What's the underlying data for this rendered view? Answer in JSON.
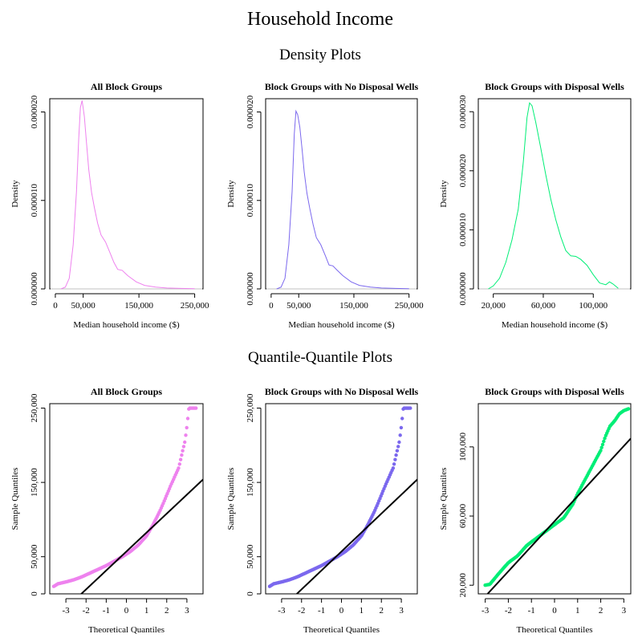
{
  "titles": {
    "main": "Household Income",
    "density_section": "Density Plots",
    "qq_section": "Quantile-Quantile Plots"
  },
  "colors": {
    "all": "#ee82ee",
    "no_wells": "#7b68ee",
    "wells": "#00ee76",
    "reference_line": "#000000",
    "zero_line": "#c0c0c0"
  },
  "chart_data": [
    {
      "type": "line",
      "title": "All Block Groups",
      "xlabel": "Median household income ($)",
      "ylabel": "Density",
      "xlim": [
        -10000,
        265000
      ],
      "ylim": [
        0,
        2.15e-05
      ],
      "x_ticks": [
        0,
        50000,
        150000,
        250000
      ],
      "x_tick_labels": [
        "0",
        "50,000",
        "150,000",
        "250,000"
      ],
      "y_ticks": [
        0,
        1e-05,
        2e-05
      ],
      "y_tick_labels": [
        "0.000000",
        "0.000010",
        "0.000020"
      ],
      "color": "#ee82ee",
      "series": [
        {
          "x": [
            10000,
            18000,
            25000,
            32000,
            38000,
            42000,
            45000,
            48000,
            52000,
            56000,
            60000,
            65000,
            70000,
            76000,
            82000,
            90000,
            98000,
            105000,
            112000,
            120000,
            130000,
            145000,
            160000,
            180000,
            200000,
            225000,
            250000
          ],
          "y": [
            0,
            2e-07,
            1.2e-06,
            5e-06,
            1.1e-05,
            1.7e-05,
            2.05e-05,
            2.13e-05,
            1.95e-05,
            1.65e-05,
            1.35e-05,
            1.09e-05,
            9.2e-06,
            7.4e-06,
            6.1e-06,
            5.3e-06,
            4.1e-06,
            3e-06,
            2.2e-06,
            2.1e-06,
            1.5e-06,
            8e-07,
            4e-07,
            2e-07,
            1e-07,
            5e-08,
            2e-08
          ]
        }
      ]
    },
    {
      "type": "line",
      "title": "Block Groups with No Disposal Wells",
      "xlabel": "Median household income ($)",
      "ylabel": "Density",
      "xlim": [
        -10000,
        265000
      ],
      "ylim": [
        0,
        2.15e-05
      ],
      "x_ticks": [
        0,
        50000,
        150000,
        250000
      ],
      "x_tick_labels": [
        "0",
        "50,000",
        "150,000",
        "250,000"
      ],
      "y_ticks": [
        0,
        1e-05,
        2e-05
      ],
      "y_tick_labels": [
        "0.000000",
        "0.000010",
        "0.000020"
      ],
      "color": "#7b68ee",
      "series": [
        {
          "x": [
            10000,
            18000,
            25000,
            32000,
            38000,
            42000,
            45000,
            48000,
            52000,
            56000,
            60000,
            65000,
            70000,
            76000,
            82000,
            90000,
            98000,
            105000,
            112000,
            120000,
            130000,
            145000,
            160000,
            180000,
            200000,
            225000,
            250000
          ],
          "y": [
            0,
            2e-07,
            1.2e-06,
            5e-06,
            1.1e-05,
            1.75e-05,
            2.01e-05,
            1.97e-05,
            1.83e-05,
            1.58e-05,
            1.32e-05,
            1.08e-05,
            9.1e-06,
            7.3e-06,
            5.8e-06,
            5e-06,
            3.8e-06,
            2.7e-06,
            2.6e-06,
            2.1e-06,
            1.5e-06,
            8e-07,
            4e-07,
            2e-07,
            1e-07,
            5e-08,
            2e-08
          ]
        }
      ]
    },
    {
      "type": "line",
      "title": "Block Groups with Disposal Wells",
      "xlabel": "Median household income ($)",
      "ylabel": "Density",
      "xlim": [
        8000,
        130000
      ],
      "ylim": [
        0,
        3.22e-05
      ],
      "x_ticks": [
        20000,
        60000,
        100000
      ],
      "x_tick_labels": [
        "20,000",
        "60,000",
        "100,000"
      ],
      "y_ticks": [
        0,
        1e-05,
        2e-05,
        3e-05
      ],
      "y_tick_labels": [
        "0.000000",
        "0.000010",
        "0.000020",
        "0.000030"
      ],
      "color": "#00ee76",
      "series": [
        {
          "x": [
            16000,
            20000,
            25000,
            30000,
            35000,
            40000,
            44000,
            47000,
            49000,
            51000,
            54000,
            58000,
            62000,
            66000,
            70000,
            74000,
            78000,
            82000,
            86000,
            90000,
            95000,
            100000,
            105000,
            110000,
            113000,
            116000,
            120000
          ],
          "y": [
            0,
            5e-07,
            1.8e-06,
            4.5e-06,
            8.3e-06,
            1.35e-05,
            2.15e-05,
            2.9e-05,
            3.15e-05,
            3.1e-05,
            2.82e-05,
            2.38e-05,
            1.93e-05,
            1.52e-05,
            1.17e-05,
            8.8e-06,
            6.5e-06,
            5.6e-06,
            5.5e-06,
            5e-06,
            4e-06,
            2.4e-06,
            1e-06,
            7e-07,
            1.2e-06,
            8e-07,
            1e-07
          ]
        }
      ]
    },
    {
      "type": "scatter",
      "title": "All Block Groups",
      "xlabel": "Theoretical Quantiles",
      "ylabel": "Sample Quantiles",
      "xlim": [
        -3.8,
        3.8
      ],
      "ylim": [
        0,
        256000
      ],
      "x_ticks": [
        -3,
        -2,
        -1,
        0,
        1,
        2,
        3
      ],
      "x_tick_labels": [
        "-3",
        "-2",
        "-1",
        "0",
        "1",
        "2",
        "3"
      ],
      "y_ticks": [
        0,
        50000,
        150000,
        250000
      ],
      "y_tick_labels": [
        "0",
        "50,000",
        "150,000",
        "250,000"
      ],
      "color": "#ee82ee",
      "reference_line": {
        "intercept": 57000,
        "slope": 25500
      },
      "quantile_curve": {
        "x": [
          -3.6,
          -3.4,
          -3.0,
          -2.6,
          -2.2,
          -1.8,
          -1.4,
          -1.0,
          -0.6,
          -0.2,
          0.2,
          0.6,
          1.0,
          1.3,
          1.6,
          1.8,
          2.0,
          2.2,
          2.4,
          2.6,
          2.75,
          2.9,
          3.0,
          3.1,
          3.25,
          3.45
        ],
        "y": [
          10000,
          13500,
          16000,
          19000,
          23000,
          28000,
          33000,
          38000,
          44000,
          50000,
          57000,
          66000,
          78000,
          92000,
          108000,
          120000,
          133000,
          146000,
          158000,
          170000,
          188000,
          205000,
          225000,
          250000,
          250000,
          250000
        ]
      }
    },
    {
      "type": "scatter",
      "title": "Block Groups with No Disposal Wells",
      "xlabel": "Theoretical Quantiles",
      "ylabel": "Sample Quantiles",
      "xlim": [
        -3.8,
        3.8
      ],
      "ylim": [
        0,
        256000
      ],
      "x_ticks": [
        -3,
        -2,
        -1,
        0,
        1,
        2,
        3
      ],
      "x_tick_labels": [
        "-3",
        "-2",
        "-1",
        "0",
        "1",
        "2",
        "3"
      ],
      "y_ticks": [
        0,
        50000,
        150000,
        250000
      ],
      "y_tick_labels": [
        "0",
        "50,000",
        "150,000",
        "250,000"
      ],
      "color": "#7b68ee",
      "reference_line": {
        "intercept": 57000,
        "slope": 25500
      },
      "quantile_curve": {
        "x": [
          -3.6,
          -3.4,
          -3.0,
          -2.6,
          -2.2,
          -1.8,
          -1.4,
          -1.0,
          -0.6,
          -0.2,
          0.2,
          0.6,
          1.0,
          1.3,
          1.6,
          1.8,
          2.0,
          2.2,
          2.4,
          2.6,
          2.75,
          2.9,
          3.0,
          3.1,
          3.25,
          3.45
        ],
        "y": [
          10000,
          13500,
          16000,
          19000,
          23000,
          28000,
          33000,
          38000,
          44000,
          50000,
          57000,
          66000,
          78000,
          92000,
          108000,
          120000,
          133000,
          146000,
          158000,
          170000,
          188000,
          205000,
          225000,
          250000,
          250000,
          250000
        ]
      }
    },
    {
      "type": "scatter",
      "title": "Block Groups with Disposal Wells",
      "xlabel": "Theoretical Quantiles",
      "ylabel": "Sample Quantiles",
      "xlim": [
        -3.3,
        3.3
      ],
      "ylim": [
        15000,
        125000
      ],
      "x_ticks": [
        -3,
        -2,
        -1,
        0,
        1,
        2,
        3
      ],
      "x_tick_labels": [
        "-3",
        "-2",
        "-1",
        "0",
        "1",
        "2",
        "3"
      ],
      "y_ticks": [
        20000,
        60000,
        100000
      ],
      "y_tick_labels": [
        "20,000",
        "60,000",
        "100,000"
      ],
      "color": "#00ee76",
      "reference_line": {
        "intercept": 57000,
        "slope": 14500
      },
      "quantile_curve": {
        "x": [
          -3.0,
          -2.8,
          -2.4,
          -2.0,
          -1.6,
          -1.2,
          -0.8,
          -0.4,
          0.0,
          0.4,
          0.8,
          1.0,
          1.2,
          1.4,
          1.6,
          1.8,
          2.0,
          2.2,
          2.4,
          2.6,
          2.8,
          3.0,
          3.2
        ],
        "y": [
          20000,
          20500,
          27000,
          33000,
          37000,
          43000,
          47000,
          51000,
          55000,
          59000,
          67000,
          73000,
          78000,
          83000,
          88000,
          93000,
          98000,
          106000,
          112000,
          115000,
          119000,
          121000,
          122000
        ]
      }
    }
  ]
}
